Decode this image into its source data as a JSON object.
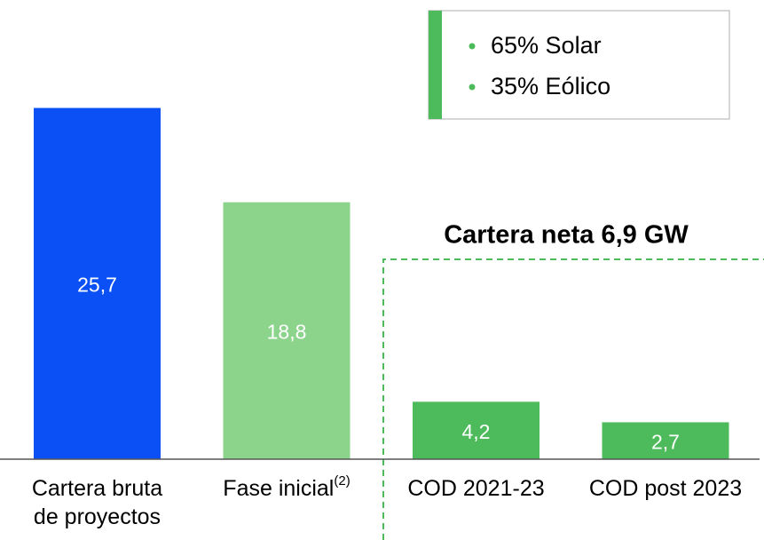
{
  "chart_data": {
    "type": "bar",
    "categories": [
      "Cartera bruta de proyectos",
      "Fase inicial",
      "COD 2021-23",
      "COD post 2023"
    ],
    "category_superscripts": [
      null,
      "(2)",
      null,
      null
    ],
    "values": [
      25.7,
      18.8,
      4.2,
      2.7
    ],
    "value_labels": [
      "25,7",
      "18,8",
      "4,2",
      "2,7"
    ],
    "colors": [
      "#0a50f5",
      "#8cd48c",
      "#4dbb5b",
      "#4dbb5b"
    ],
    "ylim": [
      0,
      33.6
    ],
    "bracket_label": "Cartera neta 6,9 GW",
    "box_items": [
      "65% Solar",
      "35% Eólico"
    ]
  }
}
